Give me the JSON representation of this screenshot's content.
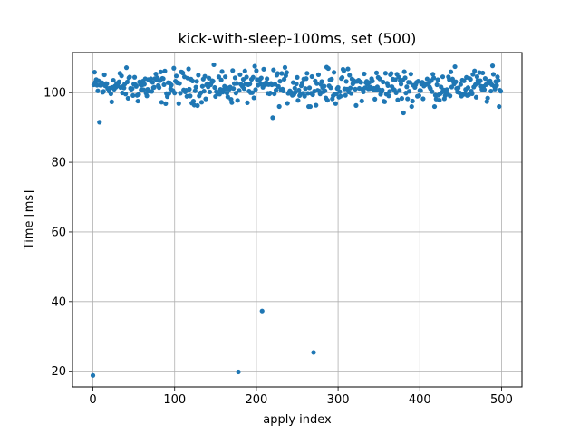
{
  "chart_data": {
    "type": "scatter",
    "title": "kick-with-sleep-100ms, set (500)",
    "xlabel": "apply index",
    "ylabel": "Time [ms]",
    "xlim": [
      -25,
      525
    ],
    "ylim": [
      15.5,
      111.5
    ],
    "xticks": [
      0,
      100,
      200,
      300,
      400,
      500
    ],
    "yticks": [
      20,
      40,
      60,
      80,
      100
    ],
    "grid": true,
    "color": "#1f77b4",
    "series": [
      {
        "outliers": [
          [
            0,
            18.8
          ],
          [
            8,
            91.5
          ],
          [
            178,
            19.8
          ],
          [
            207,
            37.3
          ],
          [
            220,
            92.8
          ],
          [
            270,
            25.4
          ],
          [
            380,
            94.2
          ]
        ],
        "bulk": {
          "count": 500,
          "x_start": 0,
          "x_end": 499,
          "center": 101.8,
          "spread_low": 96.0,
          "spread_high": 108.0
        }
      }
    ]
  }
}
